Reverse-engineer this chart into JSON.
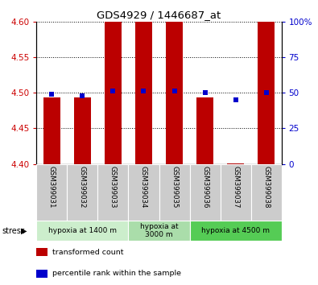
{
  "title": "GDS4929 / 1446687_at",
  "samples": [
    "GSM399031",
    "GSM399032",
    "GSM399033",
    "GSM399034",
    "GSM399035",
    "GSM399036",
    "GSM399037",
    "GSM399038"
  ],
  "bar_bottom": 4.4,
  "bar_tops": [
    4.493,
    4.493,
    4.6,
    4.6,
    4.6,
    4.493,
    4.401,
    4.6
  ],
  "percentile_ranks": [
    49,
    48,
    51,
    51,
    51,
    50,
    45,
    50
  ],
  "ylim_left": [
    4.4,
    4.6
  ],
  "ylim_right": [
    0,
    100
  ],
  "yticks_left": [
    4.4,
    4.45,
    4.5,
    4.55,
    4.6
  ],
  "yticks_right": [
    0,
    25,
    50,
    75,
    100
  ],
  "bar_color": "#bb0000",
  "dot_color": "#0000cc",
  "bar_width": 0.55,
  "groups": [
    {
      "label": "hypoxia at 1400 m",
      "start": 0,
      "end": 3
    },
    {
      "label": "hypoxia at\n3000 m",
      "start": 3,
      "end": 5
    },
    {
      "label": "hypoxia at 4500 m",
      "start": 5,
      "end": 8
    }
  ],
  "group_colors": [
    "#cceecc",
    "#aaddaa",
    "#55cc55"
  ],
  "stress_label": "stress",
  "legend_items": [
    {
      "color": "#bb0000",
      "label": "transformed count"
    },
    {
      "color": "#0000cc",
      "label": "percentile rank within the sample"
    }
  ],
  "left_tick_color": "#cc0000",
  "right_tick_color": "#0000cc",
  "sample_bg": "#cccccc",
  "plot_bg": "#ffffff"
}
